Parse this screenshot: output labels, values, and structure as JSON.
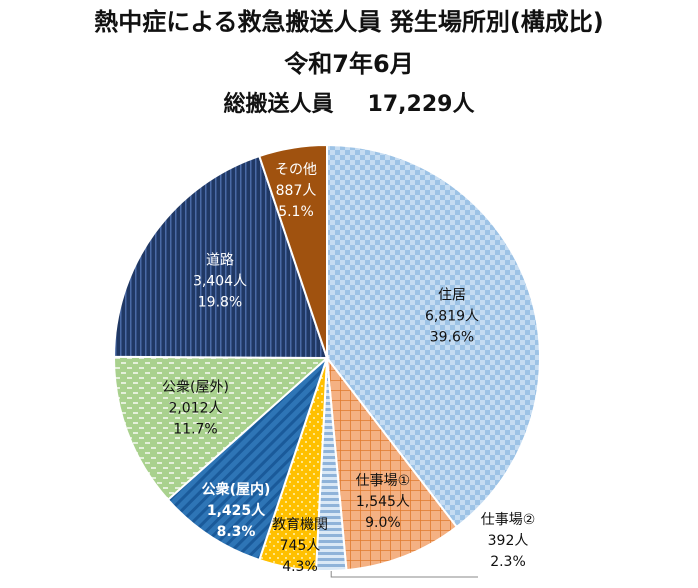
{
  "chart_data": {
    "type": "pie",
    "title": "熱中症による救急搬送人員 発生場所別(構成比)",
    "subtitle": "令和7年6月",
    "total_label": "総搬送人員",
    "total_value": "17,229人",
    "slices": [
      {
        "name": "住居",
        "count": "6,819人",
        "percent": "39.6%",
        "value": 6819,
        "color": "#9dc3e6",
        "label_color": "#111111",
        "pattern": "checker"
      },
      {
        "name": "仕事場①",
        "count": "1,545人",
        "percent": "9.0%",
        "value": 1545,
        "color": "#f4b183",
        "label_color": "#111111",
        "pattern": "grid"
      },
      {
        "name": "仕事場②",
        "count": "392人",
        "percent": "2.3%",
        "value": 392,
        "color": "#bdd7ee",
        "label_color": "#111111",
        "pattern": "hstripe"
      },
      {
        "name": "教育機関",
        "count": "745人",
        "percent": "4.3%",
        "value": 745,
        "color": "#ffc000",
        "label_color": "#111111",
        "pattern": "dots"
      },
      {
        "name": "公衆(屋内)",
        "count": "1,425人",
        "percent": "8.3%",
        "value": 1425,
        "color": "#2e75b6",
        "label_color": "#ffffff",
        "pattern": "diag"
      },
      {
        "name": "公衆(屋外)",
        "count": "2,012人",
        "percent": "11.7%",
        "value": 2012,
        "color": "#a9d18e",
        "label_color": "#111111",
        "pattern": "dash"
      },
      {
        "name": "道路",
        "count": "3,404人",
        "percent": "19.8%",
        "value": 3404,
        "color": "#203864",
        "label_color": "#ffffff",
        "pattern": "vstripe"
      },
      {
        "name": "その他",
        "count": "887人",
        "percent": "5.1%",
        "value": 887,
        "color": "#a0520f",
        "label_color": "#ffffff",
        "pattern": "solid"
      }
    ]
  }
}
